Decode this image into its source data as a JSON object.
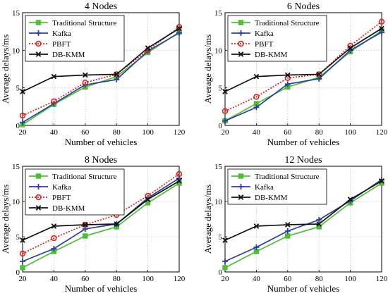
{
  "chart_data": [
    {
      "type": "line",
      "title": "4 Nodes",
      "xlabel": "Number of vehicles",
      "ylabel": "Average delays/ms",
      "x": [
        20,
        40,
        60,
        80,
        100,
        120
      ],
      "xlim": [
        20,
        120
      ],
      "ylim": [
        0,
        15
      ],
      "xticks": [
        20,
        40,
        60,
        80,
        100,
        120
      ],
      "yticks": [
        0,
        5,
        10,
        15
      ],
      "grid": true,
      "legend_position": "top-left",
      "series": [
        {
          "name": "Traditional Structure",
          "color": "#4dbf36",
          "dash": "solid",
          "marker": "square",
          "values": [
            0.1,
            2.8,
            5.1,
            6.5,
            9.7,
            12.4
          ]
        },
        {
          "name": "Kafka",
          "color": "#2b3fa0",
          "dash": "solid",
          "marker": "plus",
          "values": [
            0.4,
            2.9,
            5.4,
            6.1,
            9.9,
            12.3
          ]
        },
        {
          "name": "PBFT",
          "color": "#e0201b",
          "dash": "dotted",
          "marker": "circle",
          "values": [
            1.3,
            3.2,
            5.7,
            6.8,
            10.0,
            13.1
          ]
        },
        {
          "name": "DB-KMM",
          "color": "#111111",
          "dash": "solid",
          "marker": "cross",
          "values": [
            4.5,
            6.5,
            6.7,
            6.8,
            10.3,
            12.9
          ]
        }
      ]
    },
    {
      "type": "line",
      "title": "6 Nodes",
      "xlabel": "Number of vehicles",
      "ylabel": "Average delays/ms",
      "x": [
        20,
        40,
        60,
        80,
        100,
        120
      ],
      "xlim": [
        20,
        120
      ],
      "ylim": [
        0,
        15
      ],
      "xticks": [
        20,
        40,
        60,
        80,
        100,
        120
      ],
      "yticks": [
        0,
        5,
        10,
        15
      ],
      "grid": true,
      "legend_position": "top-left",
      "series": [
        {
          "name": "Traditional Structure",
          "color": "#4dbf36",
          "dash": "solid",
          "marker": "square",
          "values": [
            0.6,
            2.9,
            5.1,
            6.4,
            9.8,
            12.6
          ]
        },
        {
          "name": "Kafka",
          "color": "#2b3fa0",
          "dash": "solid",
          "marker": "plus",
          "values": [
            0.6,
            2.4,
            5.5,
            6.2,
            10.0,
            12.4
          ]
        },
        {
          "name": "PBFT",
          "color": "#e0201b",
          "dash": "dotted",
          "marker": "circle",
          "values": [
            1.9,
            3.8,
            6.3,
            6.8,
            10.6,
            13.8
          ]
        },
        {
          "name": "DB-KMM",
          "color": "#111111",
          "dash": "solid",
          "marker": "cross",
          "values": [
            4.5,
            6.5,
            6.7,
            6.8,
            10.3,
            12.9
          ]
        }
      ]
    },
    {
      "type": "line",
      "title": "8 Nodes",
      "xlabel": "Number of vehicles",
      "ylabel": "Average delays/ms",
      "x": [
        20,
        40,
        60,
        80,
        100,
        120
      ],
      "xlim": [
        20,
        120
      ],
      "ylim": [
        0,
        15
      ],
      "xticks": [
        20,
        40,
        60,
        80,
        100,
        120
      ],
      "yticks": [
        0,
        5,
        10,
        15
      ],
      "grid": true,
      "legend_position": "top-left",
      "series": [
        {
          "name": "Traditional Structure",
          "color": "#4dbf36",
          "dash": "solid",
          "marker": "square",
          "values": [
            0.6,
            2.9,
            5.1,
            6.4,
            9.8,
            12.6
          ]
        },
        {
          "name": "Kafka",
          "color": "#2b3fa0",
          "dash": "solid",
          "marker": "plus",
          "values": [
            1.5,
            3.3,
            6.1,
            6.8,
            10.5,
            13.3
          ]
        },
        {
          "name": "PBFT",
          "color": "#e0201b",
          "dash": "dotted",
          "marker": "circle",
          "values": [
            2.6,
            4.8,
            6.7,
            8.1,
            10.8,
            13.9
          ]
        },
        {
          "name": "DB-KMM",
          "color": "#111111",
          "dash": "solid",
          "marker": "cross",
          "values": [
            4.5,
            6.5,
            6.7,
            6.8,
            10.3,
            12.9
          ]
        }
      ]
    },
    {
      "type": "line",
      "title": "12 Nodes",
      "xlabel": "Number of vehicles",
      "ylabel": "Average delays/ms",
      "x": [
        20,
        40,
        60,
        80,
        100,
        120
      ],
      "xlim": [
        20,
        120
      ],
      "ylim": [
        0,
        15
      ],
      "xticks": [
        20,
        40,
        60,
        80,
        100,
        120
      ],
      "yticks": [
        0,
        5,
        10,
        15
      ],
      "grid": true,
      "legend_position": "top-left",
      "series": [
        {
          "name": "Traditional Structure",
          "color": "#4dbf36",
          "dash": "solid",
          "marker": "square",
          "values": [
            0.6,
            2.9,
            5.1,
            6.4,
            9.8,
            12.6
          ]
        },
        {
          "name": "Kafka",
          "color": "#2b3fa0",
          "dash": "solid",
          "marker": "plus",
          "values": [
            1.5,
            3.5,
            5.8,
            7.4,
            10.1,
            13.1
          ]
        },
        {
          "name": "DB-KMM",
          "color": "#111111",
          "dash": "solid",
          "marker": "cross",
          "values": [
            4.5,
            6.5,
            6.7,
            6.8,
            10.3,
            12.9
          ]
        }
      ]
    }
  ]
}
